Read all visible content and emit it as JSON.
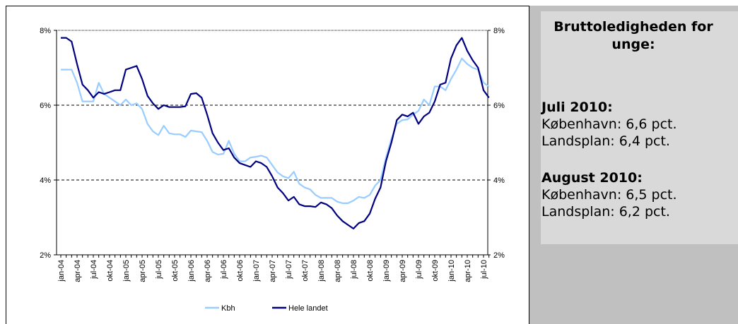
{
  "chart_data": {
    "type": "line",
    "categories": [
      "jan-04",
      null,
      null,
      "apr-04",
      null,
      null,
      "jul-04",
      null,
      null,
      "okt-04",
      null,
      null,
      "jan-05",
      null,
      null,
      "apr-05",
      null,
      null,
      "jul-05",
      null,
      null,
      "okt-05",
      null,
      null,
      "jan-06",
      null,
      null,
      "apr-06",
      null,
      null,
      "jul-06",
      null,
      null,
      "okt-06",
      null,
      null,
      "jan-07",
      null,
      null,
      "apr-07",
      null,
      null,
      "jul-07",
      null,
      null,
      "okt-07",
      null,
      null,
      "jan-08",
      null,
      null,
      "apr-08",
      null,
      null,
      "jul-08",
      null,
      null,
      "okt-08",
      null,
      null,
      "jan-09",
      null,
      null,
      "apr-09",
      null,
      null,
      "jul-09",
      null,
      null,
      "okt-09",
      null,
      null,
      "jan-10",
      null,
      null,
      "apr-10",
      null,
      null,
      "jul-10",
      null
    ],
    "series": [
      {
        "name": "Kbh",
        "color": "#99ccff",
        "values": [
          6.95,
          6.95,
          6.95,
          6.6,
          6.1,
          6.1,
          6.1,
          6.6,
          6.3,
          6.2,
          6.1,
          6.0,
          6.15,
          6.0,
          6.05,
          5.9,
          5.5,
          5.3,
          5.2,
          5.45,
          5.25,
          5.22,
          5.22,
          5.15,
          5.32,
          5.3,
          5.28,
          5.05,
          4.75,
          4.68,
          4.7,
          5.05,
          4.7,
          4.5,
          4.5,
          4.6,
          4.62,
          4.65,
          4.6,
          4.4,
          4.2,
          4.1,
          4.05,
          4.22,
          3.9,
          3.8,
          3.75,
          3.6,
          3.52,
          3.52,
          3.52,
          3.42,
          3.38,
          3.38,
          3.45,
          3.55,
          3.52,
          3.6,
          3.85,
          4.0,
          4.6,
          5.1,
          5.5,
          5.6,
          5.62,
          5.75,
          5.85,
          6.15,
          6.0,
          6.5,
          6.5,
          6.4,
          6.7,
          6.95,
          7.25,
          7.1,
          7.0,
          6.95,
          6.6,
          6.5
        ]
      },
      {
        "name": "Hele landet",
        "color": "#000080",
        "values": [
          7.8,
          7.8,
          7.7,
          7.1,
          6.55,
          6.4,
          6.2,
          6.35,
          6.3,
          6.35,
          6.4,
          6.4,
          6.95,
          7.0,
          7.05,
          6.7,
          6.25,
          6.05,
          5.9,
          6.0,
          5.95,
          5.95,
          5.95,
          5.97,
          6.3,
          6.32,
          6.2,
          5.75,
          5.25,
          5.0,
          4.8,
          4.85,
          4.6,
          4.45,
          4.4,
          4.35,
          4.5,
          4.45,
          4.35,
          4.1,
          3.8,
          3.65,
          3.45,
          3.55,
          3.35,
          3.3,
          3.3,
          3.28,
          3.4,
          3.35,
          3.25,
          3.05,
          2.9,
          2.8,
          2.7,
          2.85,
          2.9,
          3.1,
          3.5,
          3.8,
          4.5,
          5.0,
          5.6,
          5.75,
          5.7,
          5.8,
          5.5,
          5.7,
          5.8,
          6.1,
          6.55,
          6.6,
          7.25,
          7.6,
          7.8,
          7.45,
          7.2,
          7.0,
          6.4,
          6.2
        ]
      }
    ],
    "ylim": [
      2,
      8
    ],
    "yticks": [
      {
        "value": 2,
        "label": "2%"
      },
      {
        "value": 4,
        "label": "4%"
      },
      {
        "value": 6,
        "label": "6%"
      },
      {
        "value": 8,
        "label": "8%"
      }
    ],
    "y2lim": [
      2,
      8
    ],
    "y2ticks": [
      {
        "value": 2,
        "label": "2%"
      },
      {
        "value": 4,
        "label": "4%"
      },
      {
        "value": 6,
        "label": "6%"
      },
      {
        "value": 8,
        "label": "8%"
      }
    ],
    "grid": true,
    "legend": "bottom"
  },
  "panel": {
    "title": "Bruttoledigheden for unge:",
    "sections": [
      {
        "heading": "Juli 2010:",
        "lines": [
          "København: 6,6 pct.",
          "Landsplan: 6,4 pct."
        ]
      },
      {
        "heading": "August 2010:",
        "lines": [
          "København: 6,5 pct.",
          "Landsplan: 6,2 pct."
        ]
      }
    ]
  }
}
